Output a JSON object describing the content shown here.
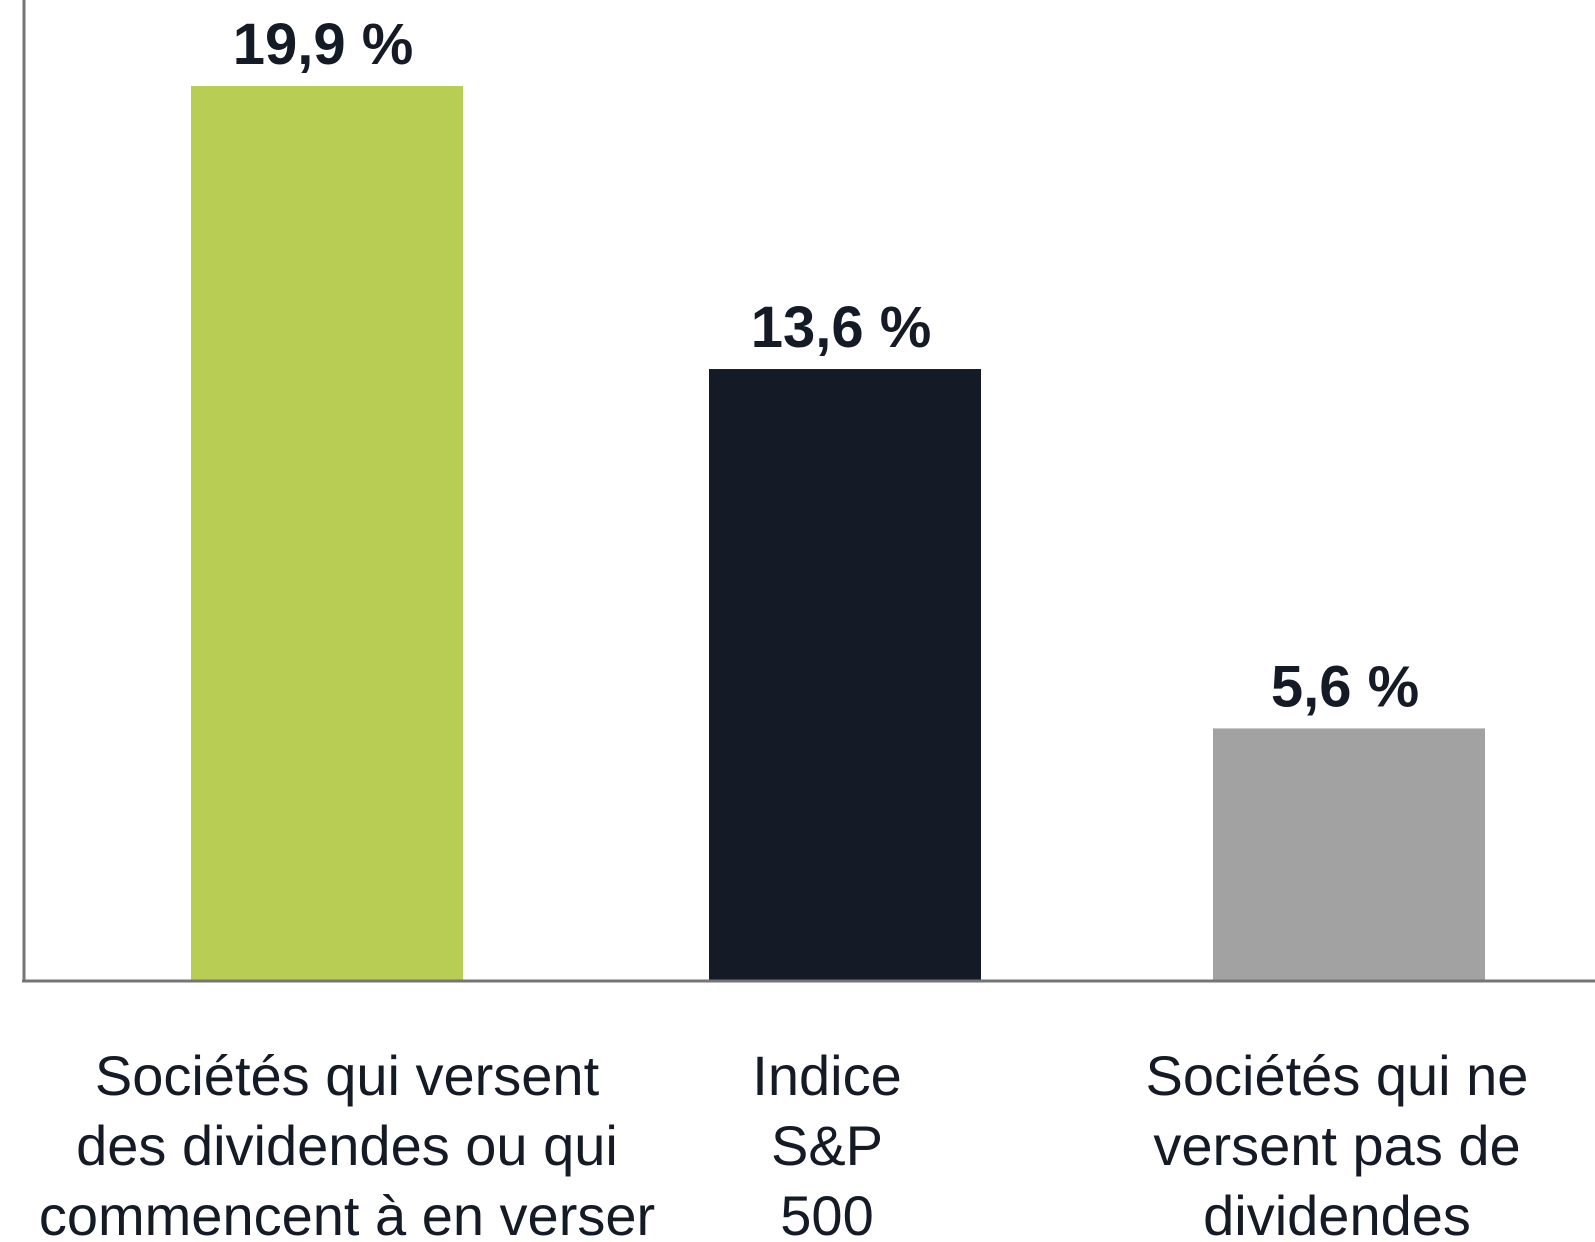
{
  "chart_data": {
    "type": "bar",
    "title": "",
    "xlabel": "",
    "ylabel": "",
    "ylim": [
      0,
      20.3
    ],
    "grid": false,
    "categories": [
      "Sociétés qui versent des dividendes ou qui commencent à en verser",
      "Indice S&P 500",
      "Sociétés qui ne versent pas de dividendes"
    ],
    "category_lines": [
      [
        "Sociétés qui versent",
        "des dividendes ou qui",
        "commencent à en verser"
      ],
      [
        "Indice",
        "S&P",
        "500"
      ],
      [
        "Sociétés qui ne",
        "versent pas de",
        "dividendes"
      ]
    ],
    "values": [
      19.9,
      13.6,
      5.6
    ],
    "value_labels": [
      "19,9 %",
      "13,6 %",
      "5,6 %"
    ],
    "colors": [
      "#b8cd53",
      "#151b26",
      "#a2a2a2"
    ]
  }
}
